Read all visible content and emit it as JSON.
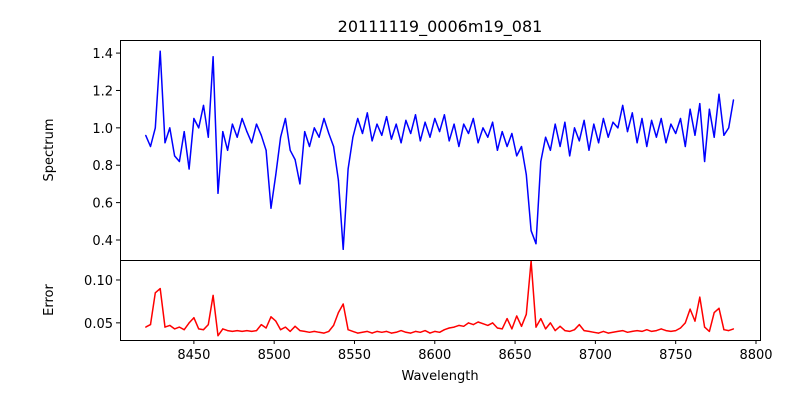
{
  "chart_data": [
    {
      "type": "line",
      "title": "20111119_0006m19_081",
      "xlabel": "",
      "ylabel": "Spectrum",
      "xlim": [
        8404,
        8802.5
      ],
      "ylim": [
        0.293,
        1.47
      ],
      "yticks": [
        0.4,
        0.6,
        0.8,
        1.0,
        1.2,
        1.4
      ],
      "ytick_labels": [
        "0.4",
        "0.6",
        "0.8",
        "1.0",
        "1.2",
        "1.4"
      ],
      "color": "#0000ff",
      "x_start": 8420,
      "x_step": 3,
      "values": [
        0.96,
        0.9,
        1.0,
        1.41,
        0.92,
        1.0,
        0.85,
        0.82,
        0.98,
        0.78,
        1.05,
        1.0,
        1.12,
        0.95,
        1.38,
        0.65,
        0.98,
        0.88,
        1.02,
        0.95,
        1.05,
        0.98,
        0.92,
        1.02,
        0.96,
        0.88,
        0.57,
        0.75,
        0.95,
        1.05,
        0.88,
        0.83,
        0.7,
        0.98,
        0.9,
        1.0,
        0.95,
        1.05,
        0.97,
        0.9,
        0.72,
        0.35,
        0.78,
        0.95,
        1.05,
        0.97,
        1.08,
        0.93,
        1.02,
        0.96,
        1.06,
        0.94,
        1.02,
        0.92,
        1.04,
        0.97,
        1.07,
        0.93,
        1.03,
        0.95,
        1.05,
        0.98,
        1.07,
        0.93,
        1.02,
        0.9,
        1.02,
        0.97,
        1.05,
        0.92,
        1.0,
        0.95,
        1.03,
        0.88,
        0.98,
        0.9,
        0.97,
        0.85,
        0.9,
        0.75,
        0.45,
        0.38,
        0.82,
        0.95,
        0.88,
        1.02,
        0.9,
        1.03,
        0.85,
        1.0,
        0.93,
        1.04,
        0.88,
        1.02,
        0.92,
        1.05,
        0.95,
        1.03,
        1.0,
        1.12,
        0.98,
        1.08,
        0.92,
        1.05,
        0.9,
        1.04,
        0.95,
        1.05,
        0.92,
        1.02,
        0.97,
        1.05,
        0.9,
        1.1,
        0.96,
        1.13,
        0.82,
        1.1,
        0.95,
        1.18,
        0.96,
        1.0,
        1.15
      ]
    },
    {
      "type": "line",
      "title": "",
      "xlabel": "Wavelength",
      "ylabel": "Error",
      "xlim": [
        8404,
        8802.5
      ],
      "ylim": [
        0.03,
        0.1233
      ],
      "yticks": [
        0.05,
        0.1
      ],
      "ytick_labels": [
        "0.05",
        "0.10"
      ],
      "xticks": [
        8450,
        8500,
        8550,
        8600,
        8650,
        8700,
        8750,
        8800
      ],
      "xtick_labels": [
        "8450",
        "8500",
        "8550",
        "8600",
        "8650",
        "8700",
        "8750",
        "8800"
      ],
      "color": "#ff0000",
      "x_start": 8420,
      "x_step": 3,
      "values": [
        0.045,
        0.048,
        0.085,
        0.09,
        0.045,
        0.047,
        0.043,
        0.045,
        0.042,
        0.05,
        0.056,
        0.043,
        0.042,
        0.048,
        0.082,
        0.035,
        0.043,
        0.041,
        0.04,
        0.041,
        0.04,
        0.041,
        0.04,
        0.041,
        0.048,
        0.044,
        0.057,
        0.052,
        0.042,
        0.045,
        0.04,
        0.046,
        0.041,
        0.04,
        0.039,
        0.04,
        0.039,
        0.038,
        0.04,
        0.047,
        0.062,
        0.072,
        0.042,
        0.04,
        0.038,
        0.039,
        0.04,
        0.038,
        0.04,
        0.039,
        0.04,
        0.038,
        0.039,
        0.041,
        0.039,
        0.038,
        0.04,
        0.039,
        0.041,
        0.038,
        0.04,
        0.039,
        0.042,
        0.044,
        0.045,
        0.047,
        0.046,
        0.05,
        0.048,
        0.051,
        0.049,
        0.047,
        0.05,
        0.044,
        0.043,
        0.055,
        0.043,
        0.058,
        0.046,
        0.06,
        0.122,
        0.045,
        0.055,
        0.043,
        0.05,
        0.041,
        0.046,
        0.041,
        0.04,
        0.042,
        0.048,
        0.041,
        0.04,
        0.039,
        0.038,
        0.04,
        0.038,
        0.039,
        0.04,
        0.041,
        0.039,
        0.04,
        0.041,
        0.04,
        0.042,
        0.04,
        0.041,
        0.043,
        0.041,
        0.04,
        0.041,
        0.044,
        0.05,
        0.066,
        0.052,
        0.08,
        0.045,
        0.04,
        0.062,
        0.067,
        0.042,
        0.041,
        0.043
      ]
    }
  ]
}
